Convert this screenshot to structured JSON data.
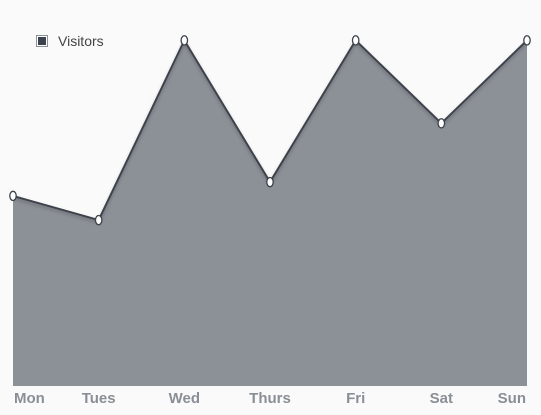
{
  "chart_data": {
    "type": "area",
    "categories": [
      "Mon",
      "Tues",
      "Wed",
      "Thurs",
      "Fri",
      "Sat",
      "Sun"
    ],
    "series": [
      {
        "name": "Visitors",
        "values": [
          55,
          48,
          100,
          59,
          100,
          76,
          100
        ]
      }
    ],
    "title": "",
    "xlabel": "",
    "ylabel": "",
    "ylim": [
      0,
      103
    ],
    "grid": false,
    "legend": "top-left",
    "colors": {
      "fill": "#8c9097",
      "line": "#3d434c",
      "point_fill": "#ffffff",
      "label": "#8a8e96"
    }
  }
}
